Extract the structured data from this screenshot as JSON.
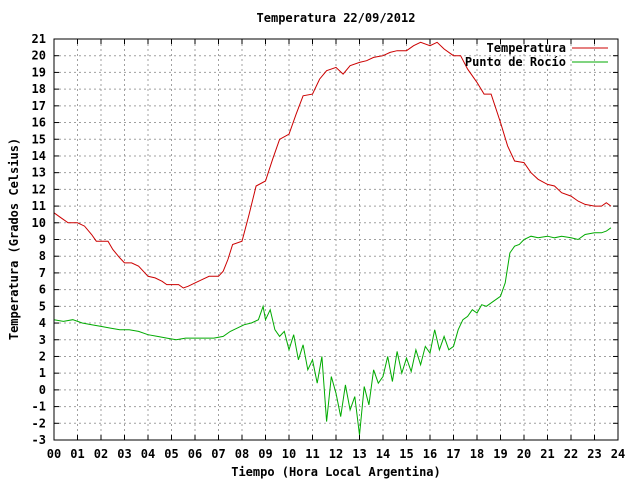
{
  "chart_data": {
    "type": "line",
    "title": "Temperatura 22/09/2012",
    "xlabel": "Tiempo (Hora Local Argentina)",
    "ylabel": "Temperatura (Grados Celsius)",
    "xlim": [
      0,
      24
    ],
    "ylim": [
      -3,
      21
    ],
    "grid": true,
    "legend_position": "top-right",
    "x_ticks": [
      "00",
      "01",
      "02",
      "03",
      "04",
      "05",
      "06",
      "07",
      "08",
      "09",
      "10",
      "11",
      "12",
      "13",
      "14",
      "15",
      "16",
      "17",
      "18",
      "19",
      "20",
      "21",
      "22",
      "23",
      "24"
    ],
    "y_ticks": [
      "-3",
      "-2",
      "-1",
      "0",
      "1",
      "2",
      "3",
      "4",
      "5",
      "6",
      "7",
      "8",
      "9",
      "10",
      "11",
      "12",
      "13",
      "14",
      "15",
      "16",
      "17",
      "18",
      "19",
      "20",
      "21"
    ],
    "series": [
      {
        "name": "Temperatura",
        "color": "#cc0000",
        "points": [
          [
            0.0,
            10.6
          ],
          [
            0.3,
            10.3
          ],
          [
            0.6,
            10.0
          ],
          [
            1.0,
            10.0
          ],
          [
            1.3,
            9.8
          ],
          [
            1.6,
            9.3
          ],
          [
            1.8,
            8.9
          ],
          [
            2.0,
            8.9
          ],
          [
            2.3,
            8.9
          ],
          [
            2.5,
            8.4
          ],
          [
            2.8,
            7.9
          ],
          [
            3.0,
            7.6
          ],
          [
            3.3,
            7.6
          ],
          [
            3.6,
            7.4
          ],
          [
            3.8,
            7.1
          ],
          [
            4.0,
            6.8
          ],
          [
            4.3,
            6.7
          ],
          [
            4.6,
            6.5
          ],
          [
            4.8,
            6.3
          ],
          [
            5.0,
            6.3
          ],
          [
            5.3,
            6.3
          ],
          [
            5.5,
            6.1
          ],
          [
            5.7,
            6.2
          ],
          [
            6.0,
            6.4
          ],
          [
            6.3,
            6.6
          ],
          [
            6.6,
            6.8
          ],
          [
            7.0,
            6.8
          ],
          [
            7.2,
            7.1
          ],
          [
            7.4,
            7.8
          ],
          [
            7.6,
            8.7
          ],
          [
            8.0,
            8.9
          ],
          [
            8.3,
            10.5
          ],
          [
            8.6,
            12.2
          ],
          [
            9.0,
            12.5
          ],
          [
            9.3,
            13.8
          ],
          [
            9.6,
            15.0
          ],
          [
            10.0,
            15.3
          ],
          [
            10.3,
            16.5
          ],
          [
            10.6,
            17.6
          ],
          [
            11.0,
            17.7
          ],
          [
            11.3,
            18.6
          ],
          [
            11.6,
            19.1
          ],
          [
            12.0,
            19.3
          ],
          [
            12.3,
            18.9
          ],
          [
            12.6,
            19.4
          ],
          [
            13.0,
            19.6
          ],
          [
            13.3,
            19.7
          ],
          [
            13.6,
            19.9
          ],
          [
            14.0,
            20.0
          ],
          [
            14.3,
            20.2
          ],
          [
            14.6,
            20.3
          ],
          [
            15.0,
            20.3
          ],
          [
            15.3,
            20.6
          ],
          [
            15.6,
            20.8
          ],
          [
            16.0,
            20.6
          ],
          [
            16.3,
            20.8
          ],
          [
            16.6,
            20.4
          ],
          [
            17.0,
            20.0
          ],
          [
            17.3,
            20.0
          ],
          [
            17.6,
            19.2
          ],
          [
            18.0,
            18.4
          ],
          [
            18.3,
            17.7
          ],
          [
            18.6,
            17.7
          ],
          [
            19.0,
            16.0
          ],
          [
            19.3,
            14.6
          ],
          [
            19.6,
            13.7
          ],
          [
            20.0,
            13.6
          ],
          [
            20.3,
            13.0
          ],
          [
            20.6,
            12.6
          ],
          [
            21.0,
            12.3
          ],
          [
            21.3,
            12.2
          ],
          [
            21.6,
            11.8
          ],
          [
            22.0,
            11.6
          ],
          [
            22.3,
            11.3
          ],
          [
            22.6,
            11.1
          ],
          [
            23.0,
            11.0
          ],
          [
            23.3,
            11.0
          ],
          [
            23.5,
            11.2
          ],
          [
            23.7,
            11.0
          ]
        ]
      },
      {
        "name": "Punto de Rocío",
        "color": "#00aa00",
        "points": [
          [
            0.0,
            4.2
          ],
          [
            0.4,
            4.1
          ],
          [
            0.8,
            4.2
          ],
          [
            1.2,
            4.0
          ],
          [
            1.6,
            3.9
          ],
          [
            2.0,
            3.8
          ],
          [
            2.4,
            3.7
          ],
          [
            2.8,
            3.6
          ],
          [
            3.2,
            3.6
          ],
          [
            3.6,
            3.5
          ],
          [
            4.0,
            3.3
          ],
          [
            4.4,
            3.2
          ],
          [
            4.8,
            3.1
          ],
          [
            5.2,
            3.0
          ],
          [
            5.6,
            3.1
          ],
          [
            6.0,
            3.1
          ],
          [
            6.4,
            3.1
          ],
          [
            6.8,
            3.1
          ],
          [
            7.2,
            3.2
          ],
          [
            7.5,
            3.5
          ],
          [
            7.8,
            3.7
          ],
          [
            8.1,
            3.9
          ],
          [
            8.4,
            4.0
          ],
          [
            8.7,
            4.2
          ],
          [
            8.9,
            5.0
          ],
          [
            9.0,
            4.2
          ],
          [
            9.2,
            4.8
          ],
          [
            9.4,
            3.6
          ],
          [
            9.6,
            3.2
          ],
          [
            9.8,
            3.5
          ],
          [
            10.0,
            2.4
          ],
          [
            10.2,
            3.3
          ],
          [
            10.4,
            1.8
          ],
          [
            10.6,
            2.7
          ],
          [
            10.8,
            1.2
          ],
          [
            11.0,
            1.8
          ],
          [
            11.2,
            0.4
          ],
          [
            11.4,
            2.0
          ],
          [
            11.6,
            -1.9
          ],
          [
            11.8,
            0.8
          ],
          [
            12.0,
            -0.2
          ],
          [
            12.2,
            -1.6
          ],
          [
            12.4,
            0.3
          ],
          [
            12.6,
            -1.2
          ],
          [
            12.8,
            -0.4
          ],
          [
            13.0,
            -2.7
          ],
          [
            13.2,
            0.2
          ],
          [
            13.4,
            -0.9
          ],
          [
            13.6,
            1.2
          ],
          [
            13.8,
            0.4
          ],
          [
            14.0,
            0.8
          ],
          [
            14.2,
            2.0
          ],
          [
            14.4,
            0.5
          ],
          [
            14.6,
            2.3
          ],
          [
            14.8,
            1.0
          ],
          [
            15.0,
            1.9
          ],
          [
            15.2,
            1.1
          ],
          [
            15.4,
            2.4
          ],
          [
            15.6,
            1.5
          ],
          [
            15.8,
            2.6
          ],
          [
            16.0,
            2.2
          ],
          [
            16.2,
            3.6
          ],
          [
            16.4,
            2.4
          ],
          [
            16.6,
            3.2
          ],
          [
            16.8,
            2.4
          ],
          [
            17.0,
            2.6
          ],
          [
            17.2,
            3.6
          ],
          [
            17.4,
            4.2
          ],
          [
            17.6,
            4.4
          ],
          [
            17.8,
            4.8
          ],
          [
            18.0,
            4.6
          ],
          [
            18.2,
            5.1
          ],
          [
            18.4,
            5.0
          ],
          [
            18.7,
            5.3
          ],
          [
            19.0,
            5.6
          ],
          [
            19.2,
            6.4
          ],
          [
            19.4,
            8.2
          ],
          [
            19.6,
            8.6
          ],
          [
            19.8,
            8.7
          ],
          [
            20.0,
            9.0
          ],
          [
            20.3,
            9.2
          ],
          [
            20.6,
            9.1
          ],
          [
            21.0,
            9.2
          ],
          [
            21.3,
            9.1
          ],
          [
            21.6,
            9.2
          ],
          [
            22.0,
            9.1
          ],
          [
            22.3,
            9.0
          ],
          [
            22.6,
            9.3
          ],
          [
            23.0,
            9.4
          ],
          [
            23.3,
            9.4
          ],
          [
            23.5,
            9.5
          ],
          [
            23.7,
            9.7
          ]
        ]
      }
    ]
  }
}
